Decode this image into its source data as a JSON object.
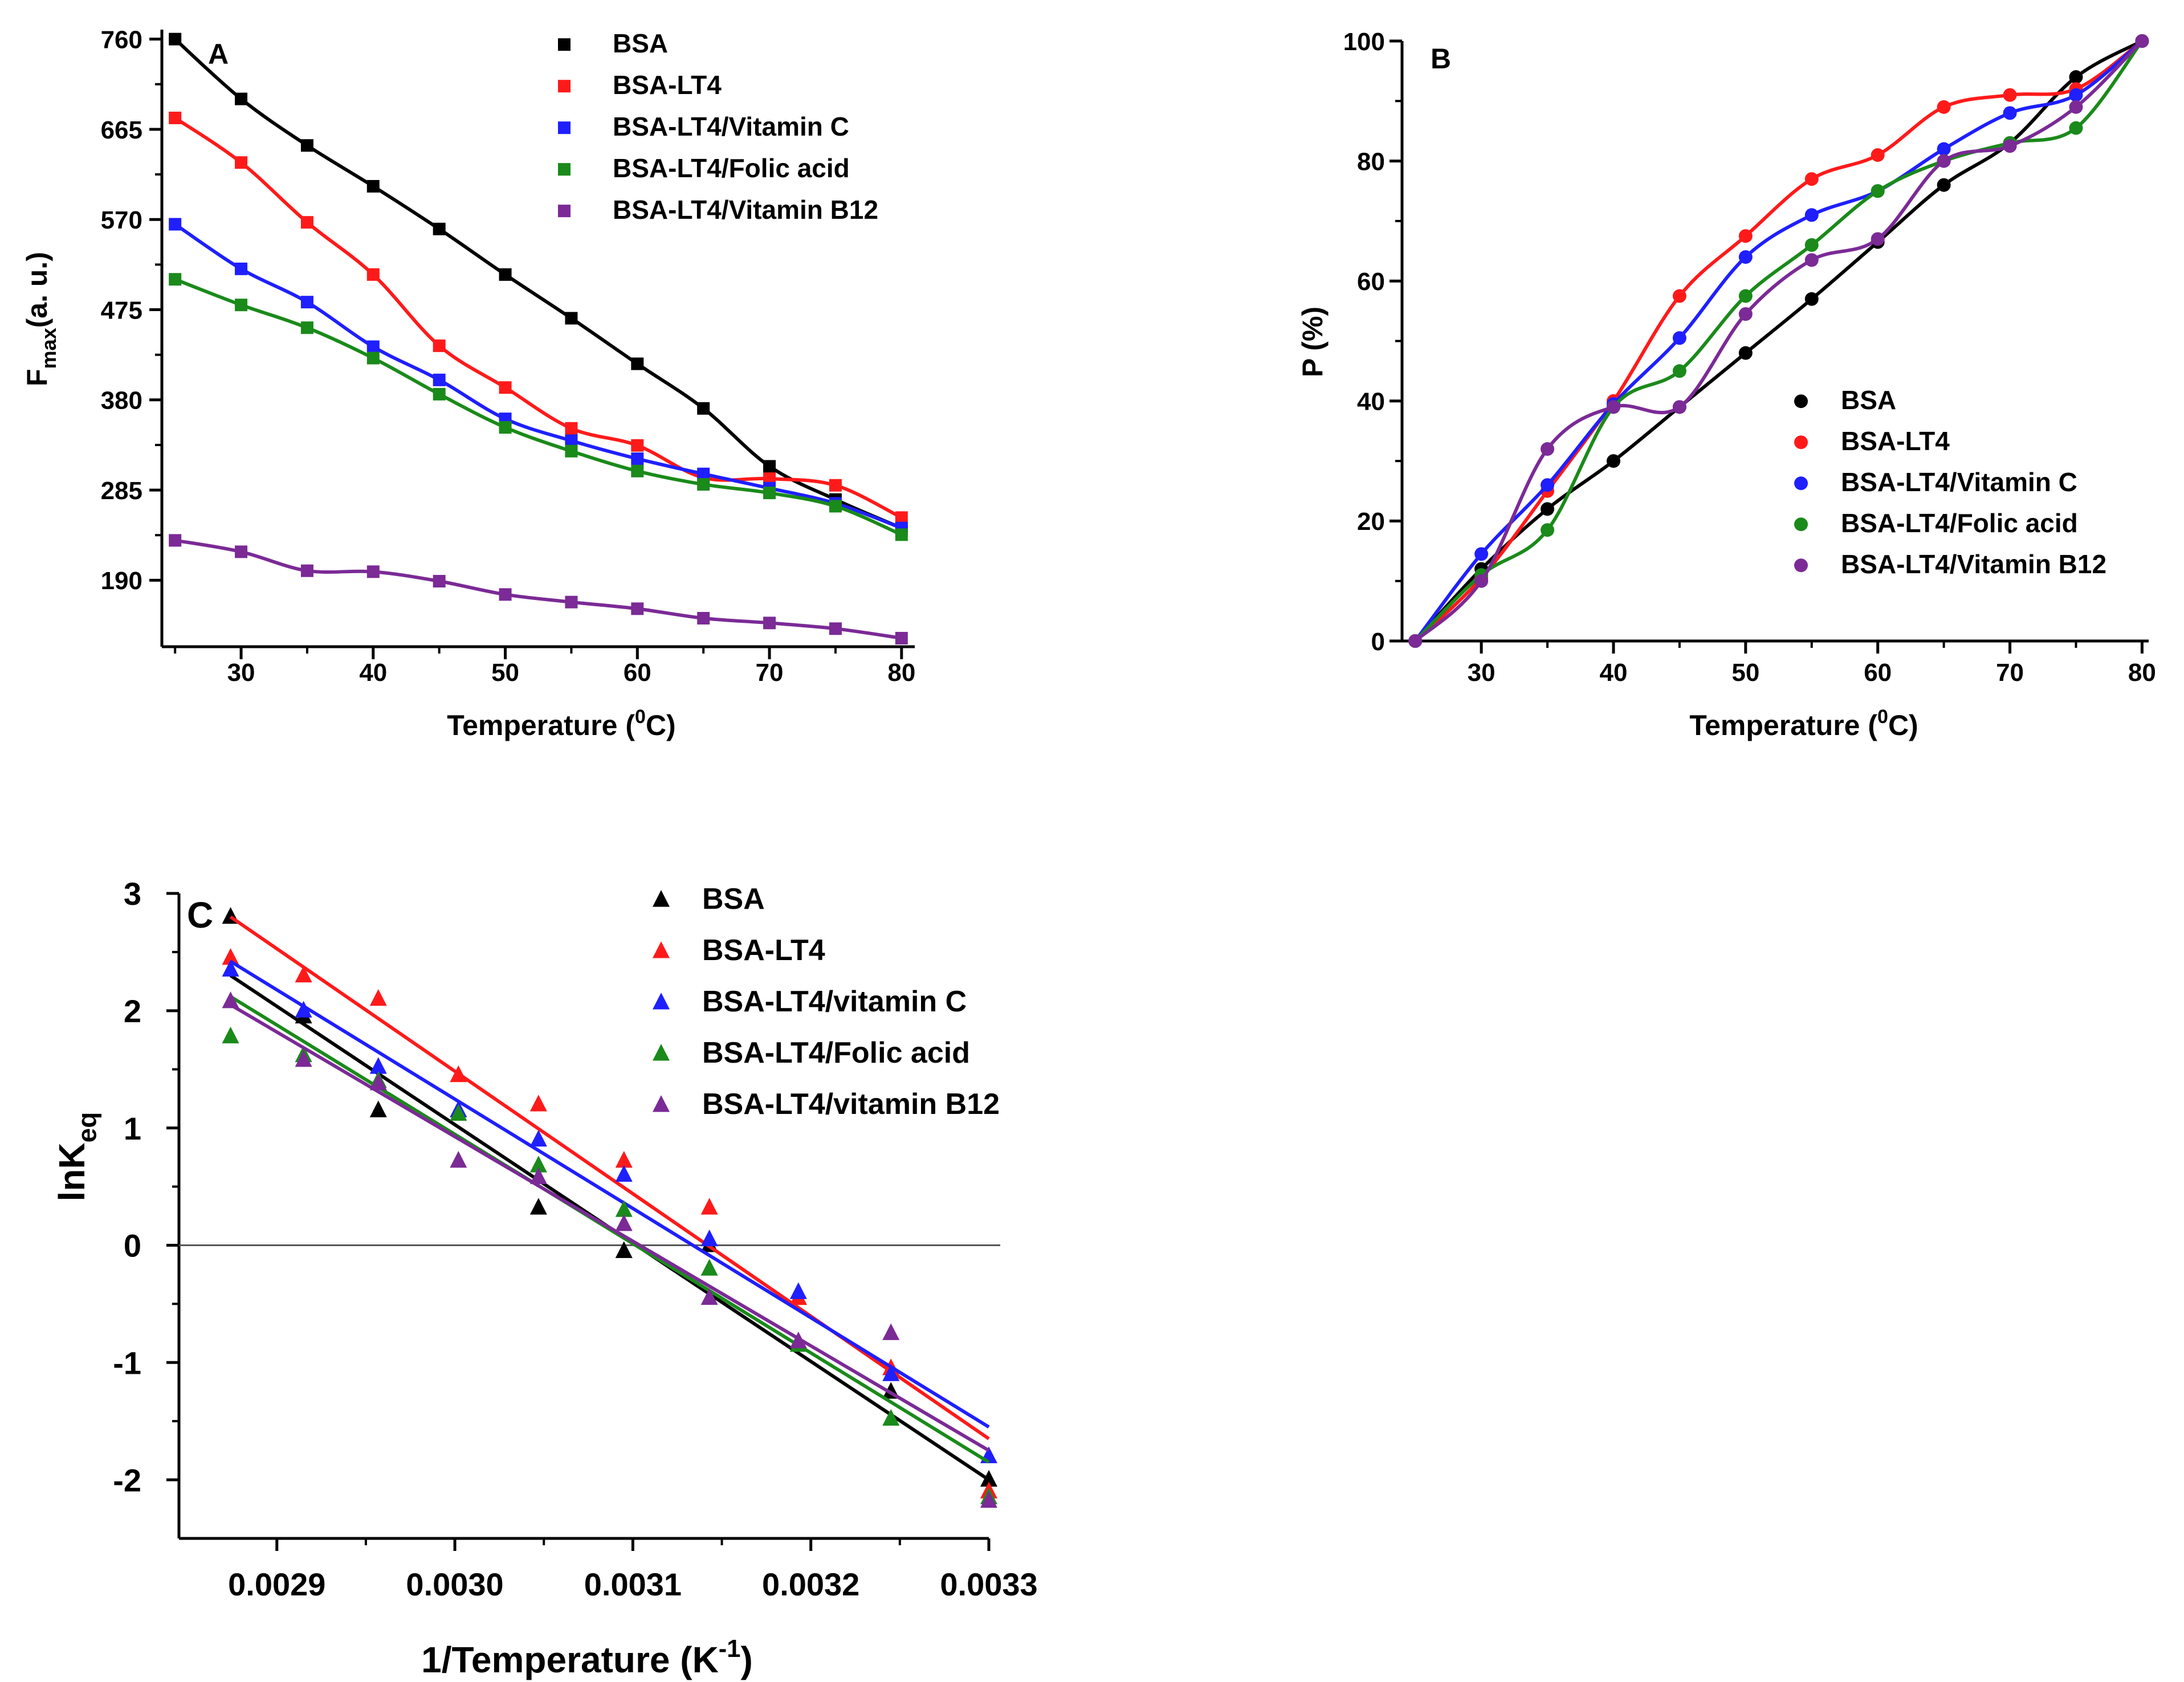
{
  "colors": {
    "black": "#000000",
    "red": "#ff1a1a",
    "blue": "#1f1fff",
    "green": "#1a8a1a",
    "purple": "#7b2a96",
    "zero_line": "#555555"
  },
  "chart_data": [
    {
      "panel": "A",
      "type": "line",
      "marker": "square",
      "title": "",
      "xlabel_prefix": "Temperature (",
      "xlabel_sup": "0",
      "xlabel_suffix": "C)",
      "ylabel_main": "F",
      "ylabel_sub": "max",
      "ylabel_suffix": "(a. u.)",
      "xlim": [
        24,
        81
      ],
      "ylim": [
        120,
        770
      ],
      "xticks": [
        30,
        40,
        50,
        60,
        70,
        80
      ],
      "yticks": [
        190,
        285,
        380,
        475,
        570,
        665,
        760
      ],
      "legend_position": "top-right",
      "x": [
        25,
        30,
        35,
        40,
        45,
        50,
        55,
        60,
        65,
        70,
        75,
        80
      ],
      "series": [
        {
          "name": "BSA",
          "color": "#000000",
          "values": [
            760,
            697,
            648,
            605,
            560,
            512,
            466,
            418,
            371,
            310,
            275,
            245
          ]
        },
        {
          "name": "BSA-LT4",
          "color": "#ff1a1a",
          "values": [
            677,
            630,
            567,
            512,
            437,
            393,
            350,
            332,
            298,
            297,
            290,
            256
          ]
        },
        {
          "name": "BSA-LT4/Vitamin C",
          "color": "#1f1fff",
          "values": [
            565,
            518,
            483,
            436,
            401,
            360,
            337,
            318,
            302,
            287,
            271,
            245
          ]
        },
        {
          "name": "BSA-LT4/Folic acid",
          "color": "#1a8a1a",
          "values": [
            507,
            480,
            456,
            424,
            386,
            351,
            326,
            305,
            291,
            282,
            268,
            238
          ]
        },
        {
          "name": "BSA-LT4/Vitamin B12",
          "color": "#7b2a96",
          "values": [
            232,
            220,
            200,
            199,
            189,
            175,
            167,
            160,
            150,
            145,
            139,
            129
          ]
        }
      ]
    },
    {
      "panel": "B",
      "type": "line",
      "marker": "circle",
      "title": "",
      "xlabel_prefix": "Temperature (",
      "xlabel_sup": "0",
      "xlabel_suffix": "C)",
      "ylabel": "P (%)",
      "xlim": [
        24,
        80.5
      ],
      "ylim": [
        0,
        100
      ],
      "xticks": [
        30,
        40,
        50,
        60,
        70,
        80
      ],
      "yticks": [
        0,
        20,
        40,
        60,
        80,
        100
      ],
      "legend_position": "bottom-right",
      "x": [
        25,
        30,
        35,
        40,
        45,
        50,
        55,
        60,
        65,
        70,
        75,
        80
      ],
      "series": [
        {
          "name": "BSA",
          "color": "#000000",
          "values": [
            0,
            12,
            22,
            30,
            39,
            48,
            57,
            66.5,
            76,
            83,
            94,
            100
          ]
        },
        {
          "name": "BSA-LT4",
          "color": "#ff1a1a",
          "values": [
            0,
            10.5,
            25,
            40,
            57.5,
            67.5,
            77,
            81,
            89,
            91,
            92,
            100
          ]
        },
        {
          "name": "BSA-LT4/Vitamin C",
          "color": "#1f1fff",
          "values": [
            0,
            14.5,
            26,
            39.5,
            50.5,
            64,
            71,
            75,
            82,
            88,
            91,
            100
          ]
        },
        {
          "name": "BSA-LT4/Folic acid",
          "color": "#1a8a1a",
          "values": [
            0,
            11,
            18.5,
            39,
            45,
            57.5,
            66,
            75,
            80,
            83,
            85.5,
            100
          ]
        },
        {
          "name": "BSA-LT4/Vitamin B12",
          "color": "#7b2a96",
          "values": [
            0,
            10,
            32,
            39,
            39,
            54.5,
            63.5,
            67,
            80,
            82.5,
            89,
            100
          ]
        }
      ]
    },
    {
      "panel": "C",
      "type": "scatter",
      "marker": "triangle",
      "title": "",
      "xlabel_prefix": "1/Temperature (K",
      "xlabel_sup": "-1",
      "xlabel_suffix": ")",
      "ylabel_main": "lnK",
      "ylabel_sub": "eq",
      "xlim": [
        0.002845,
        0.0033
      ],
      "ylim": [
        -2.5,
        3
      ],
      "xticks": [
        0.0029,
        0.003,
        0.0031,
        0.0032,
        0.0033
      ],
      "yticks": [
        -2,
        -1,
        0,
        1,
        2,
        3
      ],
      "legend_position": "top-right",
      "x": [
        0.002874,
        0.002915,
        0.002957,
        0.003002,
        0.003047,
        0.003095,
        0.003143,
        0.003193,
        0.003245,
        0.0033
      ],
      "series": [
        {
          "name": "BSA",
          "color": "#000000",
          "values": [
            2.8,
            1.95,
            1.15,
            1.15,
            0.32,
            -0.05,
            0.0,
            -0.45,
            -1.25,
            -2.0
          ],
          "fit": [
            2.3,
            -2.0
          ]
        },
        {
          "name": "BSA-LT4",
          "color": "#ff1a1a",
          "values": [
            2.45,
            2.3,
            2.1,
            1.45,
            1.2,
            0.72,
            0.32,
            -0.45,
            -1.05,
            -2.1
          ],
          "fit": [
            2.8,
            -1.65
          ]
        },
        {
          "name": "BSA-LT4/vitamin C",
          "color": "#1f1fff",
          "values": [
            2.35,
            2.0,
            1.52,
            1.15,
            0.9,
            0.6,
            0.05,
            -0.4,
            -1.1,
            -1.8
          ],
          "fit": [
            2.42,
            -1.55
          ]
        },
        {
          "name": "BSA-LT4/Folic acid",
          "color": "#1a8a1a",
          "values": [
            1.78,
            1.62,
            1.4,
            1.12,
            0.68,
            0.3,
            -0.2,
            -0.85,
            -1.48,
            -2.15
          ],
          "fit": [
            2.12,
            -1.85
          ]
        },
        {
          "name": "BSA-LT4/vitamin B12",
          "color": "#7b2a96",
          "values": [
            2.08,
            1.58,
            1.38,
            0.72,
            0.58,
            0.18,
            -0.45,
            -0.82,
            -0.75,
            -2.18
          ],
          "fit": [
            2.05,
            -1.75
          ]
        }
      ]
    }
  ]
}
